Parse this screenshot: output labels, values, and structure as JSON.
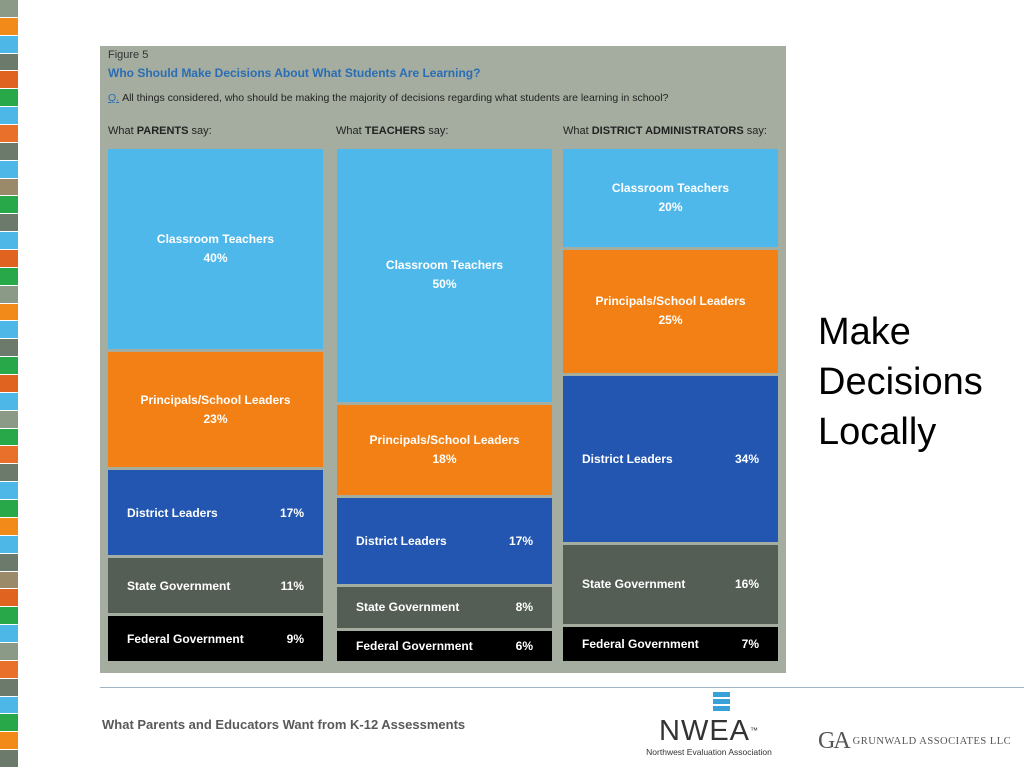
{
  "side_strip": {
    "colors": [
      "#8a9a86",
      "#f28a1a",
      "#4db8e8",
      "#6b7a6a",
      "#e06320",
      "#29a84a",
      "#4db8e8",
      "#e8702a",
      "#6b7a6a",
      "#4db8e8",
      "#9a8a6a",
      "#29a84a",
      "#6b7a6a",
      "#4db8e8",
      "#e06320",
      "#29a84a",
      "#8a9a86",
      "#f28a1a",
      "#4db8e8",
      "#6b7a6a",
      "#29a84a",
      "#e06320",
      "#4db8e8",
      "#8a9a86",
      "#29a84a",
      "#e8702a",
      "#6b7a6a",
      "#4db8e8",
      "#29a84a",
      "#f28a1a",
      "#4db8e8",
      "#6b7a6a",
      "#9a8a6a",
      "#e06320",
      "#29a84a",
      "#4db8e8",
      "#8a9a86",
      "#e8702a",
      "#6b7a6a",
      "#4db8e8",
      "#29a84a",
      "#f28a1a",
      "#6b7a6a"
    ]
  },
  "figure": {
    "label": "Figure 5",
    "title": "Who Should Make Decisions About What Students Are Learning?",
    "question_marker": "Q.",
    "question": "All things considered, who should be making the majority of decisions regarding what students are learning in school?"
  },
  "colors": {
    "Classroom Teachers": "#4fb8ea",
    "Principals/School Leaders": "#f28014",
    "District Leaders": "#2256b0",
    "State Government": "#555e55",
    "Federal Government": "#000000"
  },
  "chart_data": {
    "type": "bar",
    "stacked": true,
    "columns": [
      {
        "header_prefix": "What",
        "header_bold": "PARENTS",
        "header_suffix": "say:",
        "segments": [
          {
            "label": "Classroom Teachers",
            "value": 40,
            "display": "40%"
          },
          {
            "label": "Principals/School Leaders",
            "value": 23,
            "display": "23%"
          },
          {
            "label": "District Leaders",
            "value": 17,
            "display": "17%"
          },
          {
            "label": "State Government",
            "value": 11,
            "display": "11%"
          },
          {
            "label": "Federal Government",
            "value": 9,
            "display": "9%"
          }
        ]
      },
      {
        "header_prefix": "What",
        "header_bold": "TEACHERS",
        "header_suffix": "say:",
        "segments": [
          {
            "label": "Classroom Teachers",
            "value": 50,
            "display": "50%"
          },
          {
            "label": "Principals/School Leaders",
            "value": 18,
            "display": "18%"
          },
          {
            "label": "District Leaders",
            "value": 17,
            "display": "17%"
          },
          {
            "label": "State Government",
            "value": 8,
            "display": "8%"
          },
          {
            "label": "Federal Government",
            "value": 6,
            "display": "6%"
          }
        ]
      },
      {
        "header_prefix": "What",
        "header_bold": "DISTRICT ADMINISTRATORS",
        "header_suffix": "say:",
        "segments": [
          {
            "label": "Classroom Teachers",
            "value": 20,
            "display": "20%"
          },
          {
            "label": "Principals/School Leaders",
            "value": 25,
            "display": "25%"
          },
          {
            "label": "District Leaders",
            "value": 34,
            "display": "34%"
          },
          {
            "label": "State Government",
            "value": 16,
            "display": "16%"
          },
          {
            "label": "Federal Government",
            "value": 7,
            "display": "7%"
          }
        ]
      }
    ]
  },
  "side_heading": [
    "Make",
    "Decisions",
    "Locally"
  ],
  "footer": {
    "text": "What Parents and Educators Want from K-12 Assessments"
  },
  "nwea_logo": {
    "word": "NWEA",
    "tm": "™",
    "subtitle": "Northwest Evaluation Association"
  },
  "ga_logo": {
    "mark": "GA",
    "name": "GRUNWALD ASSOCIATES LLC"
  }
}
